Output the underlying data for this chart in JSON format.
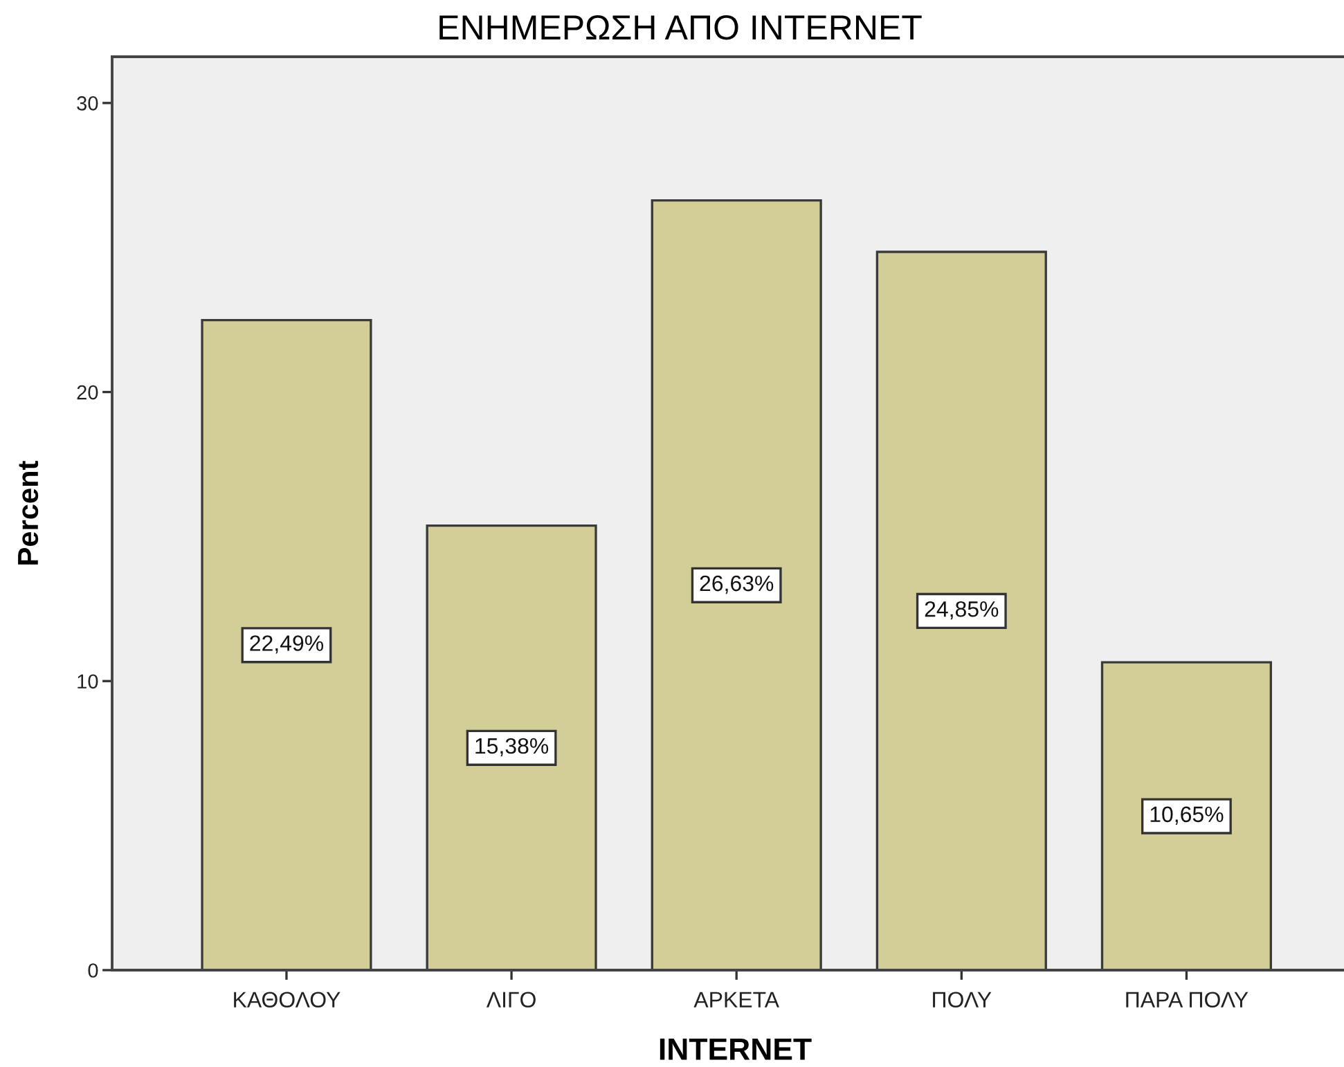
{
  "chart_data": {
    "type": "bar",
    "title": "ΕΝΗΜΕΡΩΣΗ ΑΠΟ INTERNET",
    "xlabel": "INTERNET",
    "ylabel": "Percent",
    "categories": [
      "ΚΑΘΟΛΟΥ",
      "ΛΙΓΟ",
      "ΑΡΚΕΤΑ",
      "ΠΟΛΥ",
      "ΠΑΡΑ ΠΟΛΥ"
    ],
    "values": [
      22.49,
      15.38,
      26.63,
      24.85,
      10.65
    ],
    "value_labels": [
      "22,49%",
      "15,38%",
      "26,63%",
      "24,85%",
      "10,65%"
    ],
    "color": "#d3ce97",
    "ylim": [
      0,
      31.6
    ],
    "yticks": [
      0,
      10,
      20,
      30
    ]
  }
}
